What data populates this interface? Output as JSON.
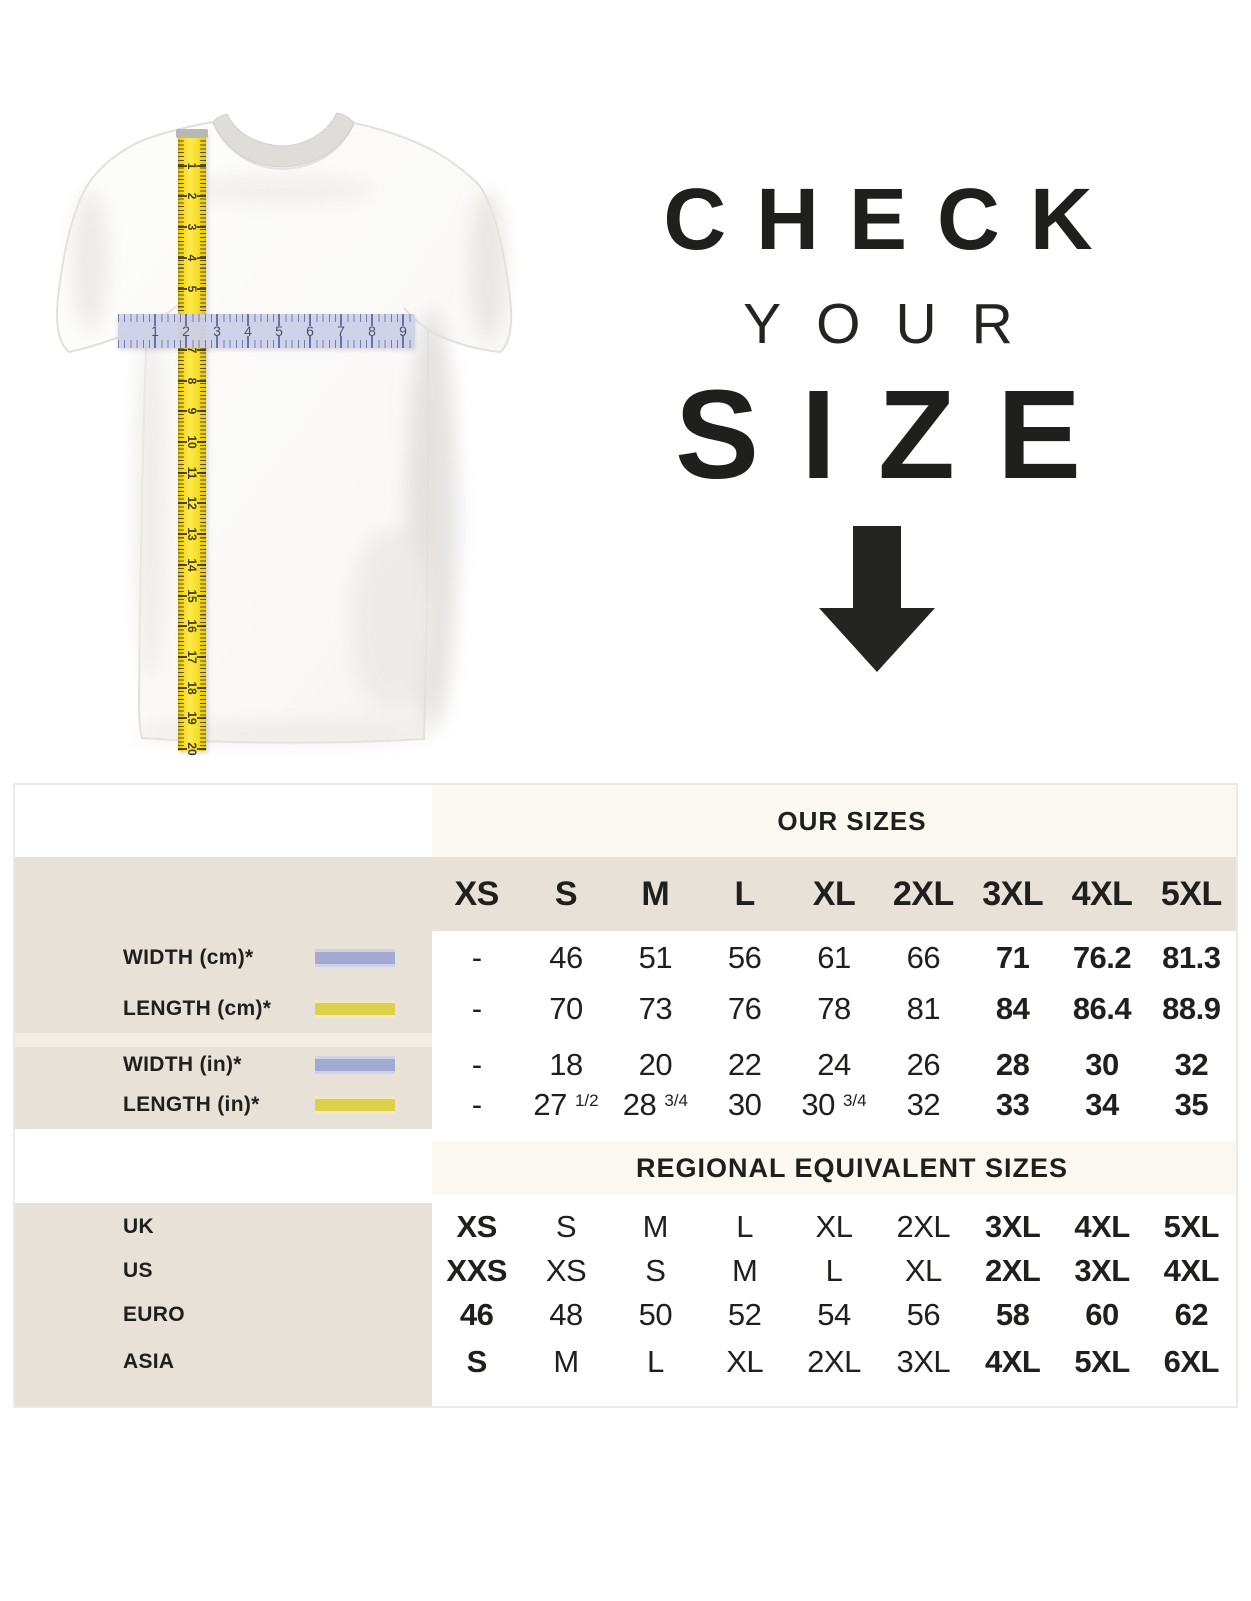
{
  "headline": {
    "line1": "CHECK",
    "line2": "YOUR",
    "line3": "SIZE"
  },
  "shirt_figure": {
    "vertical_tape_numbers": [
      1,
      2,
      3,
      4,
      5,
      6,
      7,
      8,
      9,
      10,
      11,
      12,
      13,
      14,
      15,
      16,
      17,
      18,
      19,
      20
    ],
    "horizontal_ruler_numbers": [
      1,
      2,
      3,
      4,
      5,
      6,
      7,
      8,
      9
    ]
  },
  "size_table": {
    "our_sizes_title": "OUR SIZES",
    "regional_title": "REGIONAL EQUIVALENT SIZES",
    "columns": [
      "XS",
      "S",
      "M",
      "L",
      "XL",
      "2XL",
      "3XL",
      "4XL",
      "5XL"
    ],
    "measurement_rows": [
      {
        "label": "WIDTH (cm)*",
        "swatch": "width-ruler",
        "swatch_color": "#a3aad1",
        "values": [
          "-",
          "46",
          "51",
          "56",
          "61",
          "66",
          "71",
          "76.2",
          "81.3"
        ],
        "bold_cols": [
          6,
          7,
          8
        ]
      },
      {
        "label": "LENGTH (cm)*",
        "swatch": "length-ruler",
        "swatch_color": "#ddd04b",
        "values": [
          "-",
          "70",
          "73",
          "76",
          "78",
          "81",
          "84",
          "86.4",
          "88.9"
        ],
        "bold_cols": [
          6,
          7,
          8
        ]
      },
      {
        "label": "WIDTH (in)*",
        "swatch": "width-ruler",
        "swatch_color": "#a3aad1",
        "values": [
          "-",
          "18",
          "20",
          "22",
          "24",
          "26",
          "28",
          "30",
          "32"
        ],
        "bold_cols": [
          6,
          7,
          8
        ]
      },
      {
        "label": "LENGTH (in)*",
        "swatch": "length-ruler",
        "swatch_color": "#ddd04b",
        "values": [
          "-",
          "27 1/2",
          "28 3/4",
          "30",
          "30 3/4",
          "32",
          "33",
          "34",
          "35"
        ],
        "bold_cols": [
          6,
          7,
          8
        ]
      }
    ],
    "regional_rows": [
      {
        "label": "UK",
        "values": [
          "XS",
          "S",
          "M",
          "L",
          "XL",
          "2XL",
          "3XL",
          "4XL",
          "5XL"
        ],
        "bold_cols": [
          0,
          6,
          7,
          8
        ]
      },
      {
        "label": "US",
        "values": [
          "XXS",
          "XS",
          "S",
          "M",
          "L",
          "XL",
          "2XL",
          "3XL",
          "4XL"
        ],
        "bold_cols": [
          0,
          6,
          7,
          8
        ]
      },
      {
        "label": "EURO",
        "values": [
          "46",
          "48",
          "50",
          "52",
          "54",
          "56",
          "58",
          "60",
          "62"
        ],
        "bold_cols": [
          0,
          6,
          7,
          8
        ]
      },
      {
        "label": "ASIA",
        "values": [
          "S",
          "M",
          "L",
          "XL",
          "2XL",
          "3XL",
          "4XL",
          "5XL",
          "6XL"
        ],
        "bold_cols": [
          0,
          6,
          7,
          8
        ]
      }
    ]
  },
  "colors": {
    "beige_panel": "#e8e1d8",
    "cream_header": "#fbf7f1",
    "text": "#1f1f1d",
    "width_swatch": "#a3aad1",
    "length_swatch": "#ddd04b",
    "tape_yellow": "#f8de28",
    "ruler_lavender": "#cdd0e9"
  }
}
